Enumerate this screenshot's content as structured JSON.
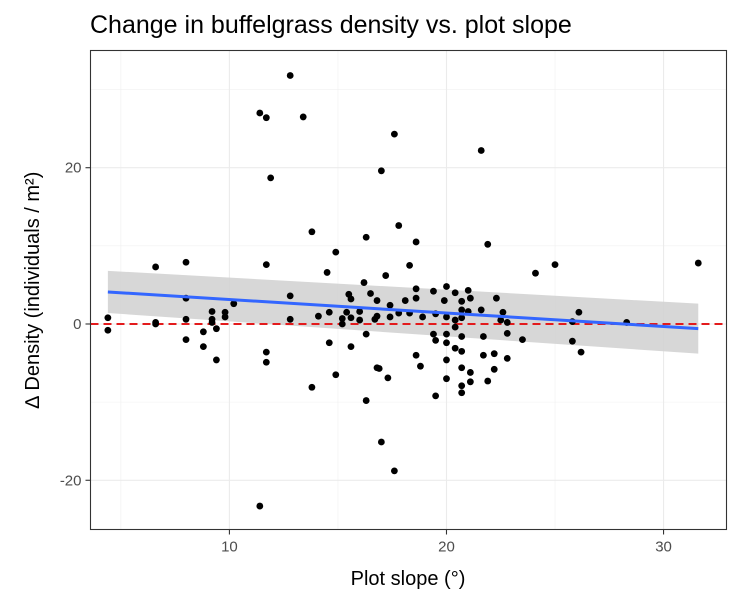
{
  "chart_data": {
    "type": "scatter",
    "title": "Change in buffelgrass density vs. plot slope",
    "xlabel": "Plot slope (°)",
    "ylabel": "∆ Density (individuals / m²)",
    "xlim": [
      3.6,
      32.9
    ],
    "ylim": [
      -26.3,
      35.0
    ],
    "x_ticks": [
      10,
      20,
      30
    ],
    "y_ticks": [
      -20,
      0,
      20
    ],
    "grid": true,
    "reference_line": {
      "y": 0,
      "color": "#e31a1c",
      "style": "dashed"
    },
    "trend_line": {
      "method": "linear fit with confidence band",
      "color": "#3366ff",
      "band_color": "#d3d3d3",
      "x": [
        4.4,
        31.6
      ],
      "y": [
        4.1,
        -0.6
      ],
      "band_upper": [
        6.8,
        2.6
      ],
      "band_lower": [
        1.4,
        -3.8
      ]
    },
    "points": [
      [
        4.4,
        0.8
      ],
      [
        4.4,
        -0.8
      ],
      [
        6.6,
        7.3
      ],
      [
        6.6,
        0.2
      ],
      [
        6.6,
        0.0
      ],
      [
        8.0,
        7.9
      ],
      [
        8.0,
        3.3
      ],
      [
        8.0,
        0.6
      ],
      [
        8.0,
        -2.0
      ],
      [
        8.8,
        -1.0
      ],
      [
        8.8,
        -2.9
      ],
      [
        9.2,
        1.6
      ],
      [
        9.2,
        0.6
      ],
      [
        9.2,
        0.2
      ],
      [
        9.4,
        -0.6
      ],
      [
        9.4,
        -4.6
      ],
      [
        9.8,
        1.5
      ],
      [
        9.8,
        0.9
      ],
      [
        10.2,
        2.6
      ],
      [
        11.4,
        27.0
      ],
      [
        11.4,
        -23.3
      ],
      [
        11.7,
        26.4
      ],
      [
        11.7,
        7.6
      ],
      [
        11.7,
        -3.6
      ],
      [
        11.7,
        -4.9
      ],
      [
        11.9,
        18.7
      ],
      [
        12.8,
        31.8
      ],
      [
        12.8,
        3.6
      ],
      [
        12.8,
        0.6
      ],
      [
        13.4,
        26.5
      ],
      [
        13.8,
        11.8
      ],
      [
        13.8,
        -8.1
      ],
      [
        14.1,
        1.0
      ],
      [
        14.5,
        6.6
      ],
      [
        14.6,
        1.5
      ],
      [
        14.6,
        -2.4
      ],
      [
        14.9,
        9.2
      ],
      [
        14.9,
        -6.5
      ],
      [
        15.2,
        0.7
      ],
      [
        15.2,
        0.0
      ],
      [
        15.4,
        1.5
      ],
      [
        15.5,
        3.8
      ],
      [
        15.6,
        3.2
      ],
      [
        15.6,
        0.8
      ],
      [
        15.6,
        -2.9
      ],
      [
        16.0,
        1.6
      ],
      [
        16.0,
        0.5
      ],
      [
        16.2,
        5.3
      ],
      [
        16.3,
        11.1
      ],
      [
        16.3,
        -1.3
      ],
      [
        16.3,
        -9.8
      ],
      [
        16.5,
        3.9
      ],
      [
        16.7,
        0.6
      ],
      [
        16.8,
        3.0
      ],
      [
        16.8,
        1.0
      ],
      [
        16.8,
        -5.6
      ],
      [
        16.9,
        -5.7
      ],
      [
        17.0,
        19.6
      ],
      [
        17.0,
        -15.1
      ],
      [
        17.2,
        6.2
      ],
      [
        17.3,
        -6.9
      ],
      [
        17.4,
        2.4
      ],
      [
        17.4,
        0.9
      ],
      [
        17.6,
        24.3
      ],
      [
        17.6,
        -18.8
      ],
      [
        17.8,
        12.6
      ],
      [
        17.8,
        1.4
      ],
      [
        18.1,
        3.0
      ],
      [
        18.3,
        7.5
      ],
      [
        18.3,
        1.4
      ],
      [
        18.6,
        10.5
      ],
      [
        18.6,
        4.5
      ],
      [
        18.6,
        3.3
      ],
      [
        18.6,
        -4.0
      ],
      [
        18.8,
        -5.4
      ],
      [
        18.9,
        0.9
      ],
      [
        19.4,
        4.2
      ],
      [
        19.4,
        -1.3
      ],
      [
        19.5,
        1.3
      ],
      [
        19.5,
        -2.1
      ],
      [
        19.5,
        -9.2
      ],
      [
        19.9,
        3.0
      ],
      [
        20.0,
        4.8
      ],
      [
        20.0,
        0.9
      ],
      [
        20.0,
        -1.3
      ],
      [
        20.0,
        -2.4
      ],
      [
        20.0,
        -4.6
      ],
      [
        20.0,
        -7.0
      ],
      [
        20.4,
        4.0
      ],
      [
        20.4,
        0.5
      ],
      [
        20.4,
        -0.4
      ],
      [
        20.4,
        -3.1
      ],
      [
        20.7,
        2.9
      ],
      [
        20.7,
        1.8
      ],
      [
        20.7,
        0.8
      ],
      [
        20.7,
        -1.6
      ],
      [
        20.7,
        -3.5
      ],
      [
        20.7,
        -5.6
      ],
      [
        20.7,
        -7.9
      ],
      [
        20.7,
        -8.8
      ],
      [
        21.0,
        4.3
      ],
      [
        21.0,
        1.6
      ],
      [
        21.1,
        3.3
      ],
      [
        21.1,
        -6.2
      ],
      [
        21.1,
        -7.4
      ],
      [
        21.6,
        22.2
      ],
      [
        21.6,
        1.8
      ],
      [
        21.7,
        -1.6
      ],
      [
        21.7,
        -4.0
      ],
      [
        21.9,
        10.2
      ],
      [
        21.9,
        -7.3
      ],
      [
        22.2,
        -3.8
      ],
      [
        22.2,
        -5.8
      ],
      [
        22.3,
        3.3
      ],
      [
        22.5,
        0.5
      ],
      [
        22.6,
        1.5
      ],
      [
        22.8,
        0.2
      ],
      [
        22.8,
        -1.2
      ],
      [
        22.8,
        -4.4
      ],
      [
        23.5,
        -2.0
      ],
      [
        24.1,
        6.5
      ],
      [
        25.0,
        7.6
      ],
      [
        25.8,
        0.3
      ],
      [
        25.8,
        -2.2
      ],
      [
        26.1,
        1.5
      ],
      [
        26.2,
        -3.6
      ],
      [
        28.3,
        0.2
      ],
      [
        31.6,
        7.8
      ]
    ]
  }
}
